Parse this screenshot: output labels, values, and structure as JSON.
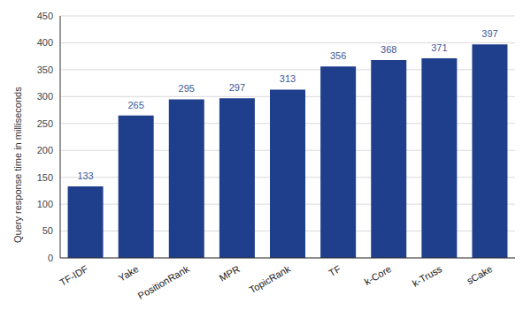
{
  "chart_data": {
    "type": "bar",
    "y_label": "Query response time in milliseconds",
    "categories": [
      "TF-IDF",
      "Yake",
      "PositionRank",
      "MPR",
      "TopicRank",
      "TF",
      "k-Core",
      "k-Truss",
      "sCake"
    ],
    "values": [
      133,
      265,
      295,
      297,
      313,
      356,
      368,
      371,
      397
    ],
    "color": "#1f3f8c",
    "ylim": [
      0,
      450
    ],
    "yticks": [
      0,
      50,
      100,
      150,
      200,
      250,
      300,
      350,
      400,
      450
    ],
    "grid": true,
    "data_labels": true
  }
}
